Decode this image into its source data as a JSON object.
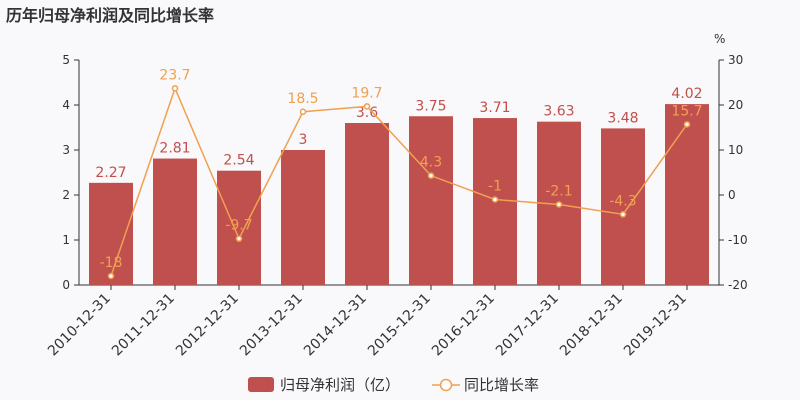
{
  "chart_data": {
    "type": "bar",
    "title": "历年归母净利润及同比增长率",
    "categories": [
      "2010-12-31",
      "2011-12-31",
      "2012-12-31",
      "2013-12-31",
      "2014-12-31",
      "2015-12-31",
      "2016-12-31",
      "2017-12-31",
      "2018-12-31",
      "2019-12-31"
    ],
    "series": [
      {
        "name": "归母净利润（亿）",
        "type": "bar",
        "axis": "left",
        "color": "#c0504d",
        "values": [
          2.27,
          2.81,
          2.54,
          3,
          3.6,
          3.75,
          3.71,
          3.63,
          3.48,
          4.02
        ],
        "labels": [
          "2.27",
          "2.81",
          "2.54",
          "3",
          "3.6",
          "3.75",
          "3.71",
          "3.63",
          "3.48",
          "4.02"
        ]
      },
      {
        "name": "同比增长率",
        "type": "line",
        "axis": "right",
        "color": "#f0a050",
        "values": [
          -18,
          23.7,
          -9.7,
          18.5,
          19.7,
          4.3,
          -1,
          -2.1,
          -4.3,
          15.7
        ],
        "labels": [
          "-18",
          "23.7",
          "-9.7",
          "18.5",
          "19.7",
          "4.3",
          "-1",
          "-2.1",
          "-4.3",
          "15.7"
        ]
      }
    ],
    "y_left": {
      "min": 0,
      "max": 5,
      "ticks": [
        "0",
        "1",
        "2",
        "3",
        "4",
        "5"
      ]
    },
    "y_right": {
      "min": -20,
      "max": 30,
      "ticks": [
        "-20",
        "-10",
        "0",
        "10",
        "20",
        "30"
      ],
      "unit": "%"
    },
    "legend_position": "bottom",
    "grid": false
  }
}
